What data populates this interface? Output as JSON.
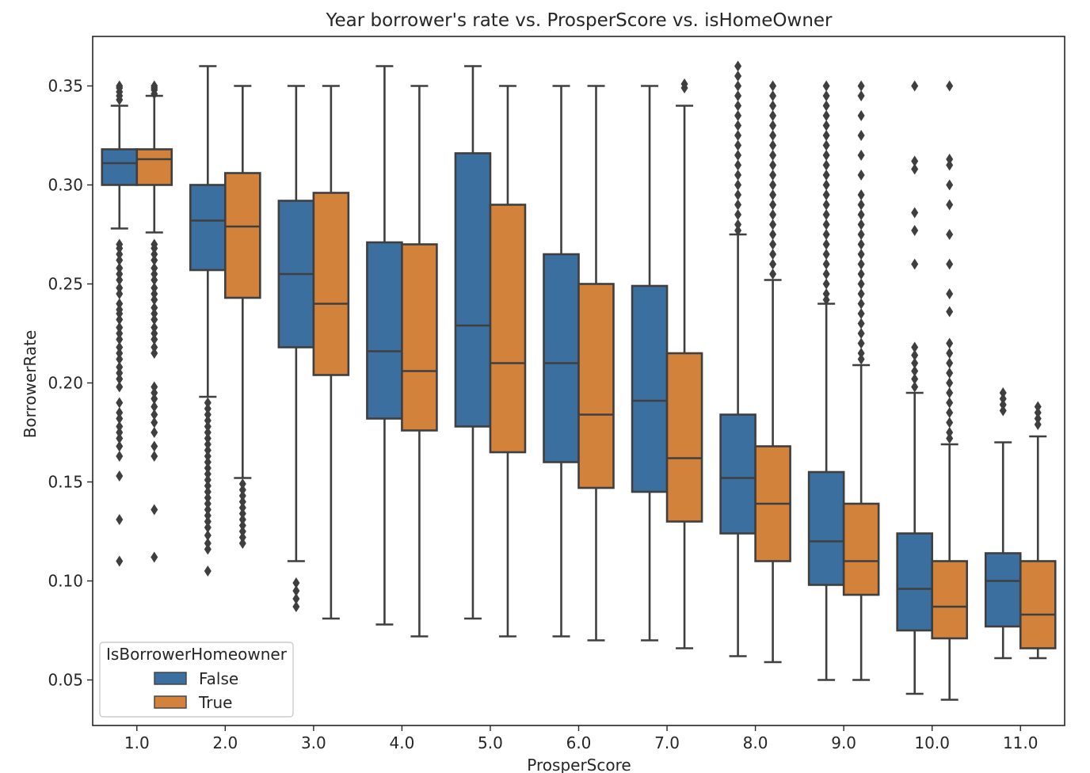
{
  "chart_data": {
    "type": "box",
    "title": "Year borrower's rate vs. ProsperScore vs. isHomeOwner",
    "xlabel": "ProsperScore",
    "ylabel": "BorrowerRate",
    "ylim": [
      0.027,
      0.375
    ],
    "yticks": [
      0.05,
      0.1,
      0.15,
      0.2,
      0.25,
      0.3,
      0.35
    ],
    "ytick_labels": [
      "0.05",
      "0.10",
      "0.15",
      "0.20",
      "0.25",
      "0.30",
      "0.35"
    ],
    "categories": [
      "1.0",
      "2.0",
      "3.0",
      "4.0",
      "5.0",
      "6.0",
      "7.0",
      "8.0",
      "9.0",
      "10.0",
      "11.0"
    ],
    "legend": {
      "title": "IsBorrowerHomeowner",
      "location": "lower-left"
    },
    "series": [
      {
        "name": "False",
        "color": "#3a6fa0",
        "boxes": [
          {
            "whislo": 0.278,
            "q1": 0.3,
            "med": 0.311,
            "q3": 0.318,
            "whishi": 0.34,
            "fliers": [
              0.35,
              0.349,
              0.347,
              0.345,
              0.343,
              0.27,
              0.268,
              0.265,
              0.262,
              0.258,
              0.255,
              0.252,
              0.248,
              0.245,
              0.24,
              0.237,
              0.235,
              0.232,
              0.228,
              0.225,
              0.222,
              0.218,
              0.215,
              0.212,
              0.208,
              0.205,
              0.202,
              0.198,
              0.19,
              0.185,
              0.182,
              0.178,
              0.175,
              0.172,
              0.168,
              0.163,
              0.153,
              0.131,
              0.11
            ]
          },
          {
            "whislo": 0.193,
            "q1": 0.257,
            "med": 0.282,
            "q3": 0.3,
            "whishi": 0.36,
            "fliers": [
              0.19,
              0.187,
              0.184,
              0.181,
              0.178,
              0.175,
              0.172,
              0.169,
              0.166,
              0.163,
              0.16,
              0.157,
              0.154,
              0.151,
              0.148,
              0.145,
              0.142,
              0.139,
              0.136,
              0.133,
              0.13,
              0.127,
              0.123,
              0.119,
              0.116,
              0.105
            ]
          },
          {
            "whislo": 0.11,
            "q1": 0.218,
            "med": 0.255,
            "q3": 0.292,
            "whishi": 0.35,
            "fliers": [
              0.099,
              0.095,
              0.091,
              0.087
            ]
          },
          {
            "whislo": 0.078,
            "q1": 0.182,
            "med": 0.216,
            "q3": 0.271,
            "whishi": 0.36,
            "fliers": []
          },
          {
            "whislo": 0.081,
            "q1": 0.178,
            "med": 0.229,
            "q3": 0.316,
            "whishi": 0.36,
            "fliers": []
          },
          {
            "whislo": 0.072,
            "q1": 0.16,
            "med": 0.21,
            "q3": 0.265,
            "whishi": 0.35,
            "fliers": []
          },
          {
            "whislo": 0.07,
            "q1": 0.145,
            "med": 0.191,
            "q3": 0.249,
            "whishi": 0.35,
            "fliers": []
          },
          {
            "whislo": 0.062,
            "q1": 0.124,
            "med": 0.152,
            "q3": 0.184,
            "whishi": 0.275,
            "fliers": [
              0.36,
              0.355,
              0.35,
              0.345,
              0.34,
              0.335,
              0.33,
              0.325,
              0.32,
              0.315,
              0.31,
              0.305,
              0.3,
              0.295,
              0.29,
              0.285,
              0.28,
              0.277
            ]
          },
          {
            "whislo": 0.05,
            "q1": 0.098,
            "med": 0.12,
            "q3": 0.155,
            "whishi": 0.24,
            "fliers": [
              0.35,
              0.345,
              0.34,
              0.335,
              0.33,
              0.325,
              0.32,
              0.315,
              0.31,
              0.305,
              0.3,
              0.295,
              0.29,
              0.285,
              0.28,
              0.275,
              0.27,
              0.265,
              0.26,
              0.255,
              0.25,
              0.245,
              0.242
            ]
          },
          {
            "whislo": 0.043,
            "q1": 0.075,
            "med": 0.096,
            "q3": 0.124,
            "whishi": 0.195,
            "fliers": [
              0.35,
              0.312,
              0.308,
              0.286,
              0.277,
              0.26,
              0.218,
              0.214,
              0.21,
              0.206,
              0.202,
              0.198
            ]
          },
          {
            "whislo": 0.061,
            "q1": 0.077,
            "med": 0.1,
            "q3": 0.114,
            "whishi": 0.17,
            "fliers": [
              0.195,
              0.192,
              0.189,
              0.186
            ]
          }
        ]
      },
      {
        "name": "True",
        "color": "#d2823a",
        "boxes": [
          {
            "whislo": 0.276,
            "q1": 0.3,
            "med": 0.313,
            "q3": 0.318,
            "whishi": 0.345,
            "fliers": [
              0.35,
              0.349,
              0.348,
              0.346,
              0.27,
              0.268,
              0.265,
              0.262,
              0.258,
              0.255,
              0.252,
              0.248,
              0.245,
              0.242,
              0.238,
              0.235,
              0.232,
              0.228,
              0.225,
              0.222,
              0.218,
              0.215,
              0.198,
              0.195,
              0.192,
              0.188,
              0.184,
              0.18,
              0.175,
              0.168,
              0.163,
              0.136,
              0.112
            ]
          },
          {
            "whislo": 0.152,
            "q1": 0.243,
            "med": 0.279,
            "q3": 0.306,
            "whishi": 0.35,
            "fliers": [
              0.149,
              0.146,
              0.143,
              0.14,
              0.137,
              0.134,
              0.131,
              0.128,
              0.125,
              0.122,
              0.119
            ]
          },
          {
            "whislo": 0.081,
            "q1": 0.204,
            "med": 0.24,
            "q3": 0.296,
            "whishi": 0.35,
            "fliers": []
          },
          {
            "whislo": 0.072,
            "q1": 0.176,
            "med": 0.206,
            "q3": 0.27,
            "whishi": 0.35,
            "fliers": []
          },
          {
            "whislo": 0.072,
            "q1": 0.165,
            "med": 0.21,
            "q3": 0.29,
            "whishi": 0.35,
            "fliers": []
          },
          {
            "whislo": 0.07,
            "q1": 0.147,
            "med": 0.184,
            "q3": 0.25,
            "whishi": 0.35,
            "fliers": []
          },
          {
            "whislo": 0.066,
            "q1": 0.13,
            "med": 0.162,
            "q3": 0.215,
            "whishi": 0.34,
            "fliers": [
              0.351,
              0.349
            ]
          },
          {
            "whislo": 0.059,
            "q1": 0.11,
            "med": 0.139,
            "q3": 0.168,
            "whishi": 0.252,
            "fliers": [
              0.35,
              0.345,
              0.34,
              0.335,
              0.33,
              0.325,
              0.32,
              0.315,
              0.31,
              0.305,
              0.3,
              0.295,
              0.29,
              0.285,
              0.28,
              0.275,
              0.27,
              0.265,
              0.26,
              0.255
            ]
          },
          {
            "whislo": 0.05,
            "q1": 0.093,
            "med": 0.11,
            "q3": 0.139,
            "whishi": 0.209,
            "fliers": [
              0.35,
              0.345,
              0.335,
              0.325,
              0.315,
              0.305,
              0.295,
              0.29,
              0.285,
              0.28,
              0.275,
              0.27,
              0.265,
              0.26,
              0.255,
              0.25,
              0.245,
              0.24,
              0.235,
              0.23,
              0.225,
              0.22,
              0.215,
              0.212
            ]
          },
          {
            "whislo": 0.04,
            "q1": 0.071,
            "med": 0.087,
            "q3": 0.11,
            "whishi": 0.169,
            "fliers": [
              0.35,
              0.313,
              0.31,
              0.3,
              0.29,
              0.275,
              0.26,
              0.245,
              0.236,
              0.22,
              0.215,
              0.21,
              0.205,
              0.2,
              0.195,
              0.19,
              0.185,
              0.18,
              0.175,
              0.172
            ]
          },
          {
            "whislo": 0.061,
            "q1": 0.066,
            "med": 0.083,
            "q3": 0.11,
            "whishi": 0.173,
            "fliers": [
              0.188,
              0.185,
              0.182,
              0.179
            ]
          }
        ]
      }
    ]
  }
}
